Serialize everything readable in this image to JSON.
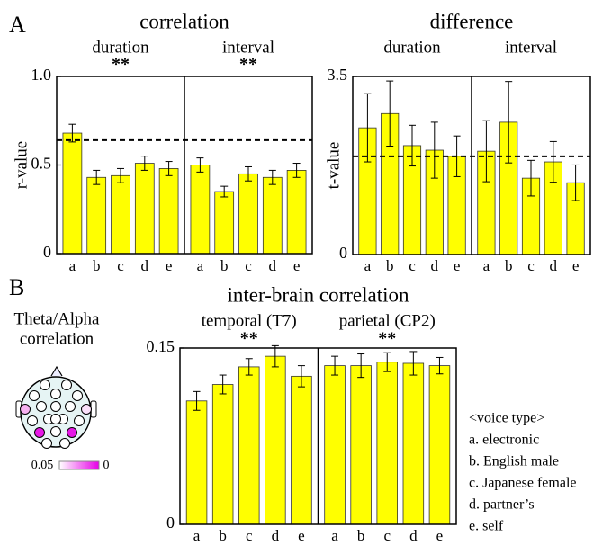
{
  "chart_data": [
    {
      "type": "bar",
      "title": "correlation",
      "ylabel": "r-value",
      "ylim": [
        0,
        1
      ],
      "yticks": [
        0,
        0.5,
        {
          "value": 1,
          "label": "1.0"
        }
      ],
      "reference_line": 0.64,
      "color": "#ffff00",
      "panels": [
        {
          "title": "duration",
          "significance": "**",
          "categories": [
            "a",
            "b",
            "c",
            "d",
            "e"
          ],
          "values": [
            0.68,
            0.43,
            0.44,
            0.51,
            0.48
          ],
          "errors": [
            0.05,
            0.04,
            0.04,
            0.04,
            0.04
          ]
        },
        {
          "title": "interval",
          "significance": "**",
          "categories": [
            "a",
            "b",
            "c",
            "d",
            "e"
          ],
          "values": [
            0.5,
            0.35,
            0.45,
            0.43,
            0.47
          ],
          "errors": [
            0.04,
            0.03,
            0.04,
            0.04,
            0.04
          ]
        }
      ]
    },
    {
      "type": "bar",
      "title": "difference",
      "ylabel": "t-value",
      "ylim": [
        0,
        3.5
      ],
      "yticks": [
        0,
        3.5
      ],
      "reference_line": 1.93,
      "color": "#ffff00",
      "panels": [
        {
          "title": "duration",
          "categories": [
            "a",
            "b",
            "c",
            "d",
            "e"
          ],
          "values": [
            2.49,
            2.77,
            2.14,
            2.05,
            1.93
          ],
          "errors": [
            0.67,
            0.64,
            0.4,
            0.55,
            0.4
          ]
        },
        {
          "title": "interval",
          "categories": [
            "a",
            "b",
            "c",
            "d",
            "e"
          ],
          "values": [
            2.03,
            2.6,
            1.5,
            1.82,
            1.41
          ],
          "errors": [
            0.6,
            0.8,
            0.35,
            0.4,
            0.35
          ]
        }
      ]
    },
    {
      "type": "bar",
      "title": "inter-brain correlation",
      "ylim": [
        0,
        0.15
      ],
      "yticks": [
        0,
        0.15
      ],
      "color": "#ffff00",
      "panels": [
        {
          "title": "temporal (T7)",
          "significance": "**",
          "categories": [
            "a",
            "b",
            "c",
            "d",
            "e"
          ],
          "values": [
            0.105,
            0.119,
            0.134,
            0.143,
            0.126
          ],
          "errors": [
            0.008,
            0.008,
            0.007,
            0.009,
            0.009
          ]
        },
        {
          "title": "parietal (CP2)",
          "significance": "**",
          "categories": [
            "a",
            "b",
            "c",
            "d",
            "e"
          ],
          "values": [
            0.135,
            0.135,
            0.138,
            0.137,
            0.135
          ],
          "errors": [
            0.008,
            0.01,
            0.008,
            0.01,
            0.007
          ]
        }
      ]
    }
  ],
  "panel_labels": [
    "A",
    "B"
  ],
  "topography": {
    "title_lines": [
      "Theta/Alpha",
      "correlation"
    ],
    "colorbar_ticks": [
      0.05,
      0
    ]
  },
  "legend": {
    "title": "<voice type>",
    "items": [
      "a. electronic",
      "b. English male",
      "c. Japanese female",
      "d. partner’s",
      "e. self"
    ]
  }
}
